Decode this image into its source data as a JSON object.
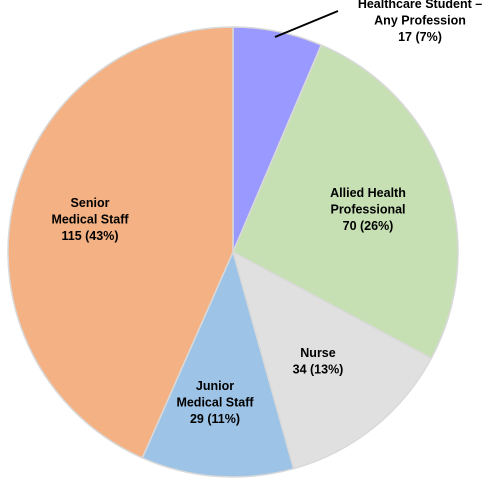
{
  "chart_data": {
    "type": "pie",
    "slices": [
      {
        "name_lines": [
          "Healthcare Student –",
          "Any Profession"
        ],
        "value": 17,
        "value_label": "17 (7%)",
        "color": "#9999ff"
      },
      {
        "name_lines": [
          "Allied Health",
          "Professional"
        ],
        "value": 70,
        "value_label": "70 (26%)",
        "color": "#c6e0b4"
      },
      {
        "name_lines": [
          "Nurse"
        ],
        "value": 34,
        "value_label": "34 (13%)",
        "color": "#e0e0e0"
      },
      {
        "name_lines": [
          "Junior",
          "Medical Staff"
        ],
        "value": 29,
        "value_label": "29 (11%)",
        "color": "#9dc3e6"
      },
      {
        "name_lines": [
          "Senior",
          "Medical Staff"
        ],
        "value": 115,
        "value_label": "115 (43%)",
        "color": "#f4b183"
      }
    ],
    "legend": "none",
    "labels": "on-slice"
  }
}
